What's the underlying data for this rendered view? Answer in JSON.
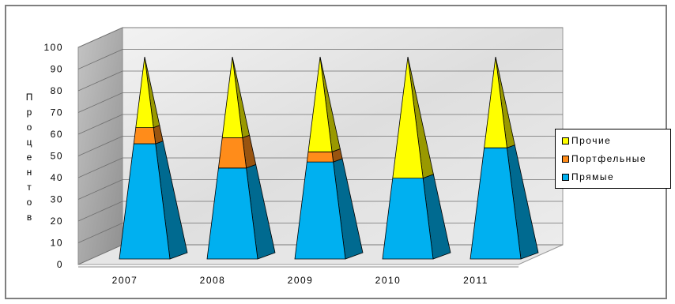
{
  "chart_data": {
    "type": "bar",
    "stacked": true,
    "ylabel": "Процентов",
    "ylim": [
      0,
      100
    ],
    "yticks": [
      0,
      10,
      20,
      30,
      40,
      50,
      60,
      70,
      80,
      90,
      100
    ],
    "categories": [
      "2007",
      "2008",
      "2009",
      "2010",
      "2011"
    ],
    "series": [
      {
        "name": "Прямые",
        "values": [
          57,
          45,
          48,
          40,
          55
        ],
        "color": "#00B0F0"
      },
      {
        "name": "Портфельные",
        "values": [
          8,
          15,
          5,
          0,
          0
        ],
        "color": "#FF8C1A"
      },
      {
        "name": "Прочие",
        "values": [
          35,
          40,
          47,
          60,
          45
        ],
        "color": "#FFFF00"
      }
    ],
    "legend": [
      {
        "label": "Прочие",
        "color": "#FFFF00"
      },
      {
        "label": "Портфельные",
        "color": "#FF8C1A"
      },
      {
        "label": "Прямые",
        "color": "#00B0F0"
      }
    ],
    "legend_position": "right",
    "grid": true
  }
}
